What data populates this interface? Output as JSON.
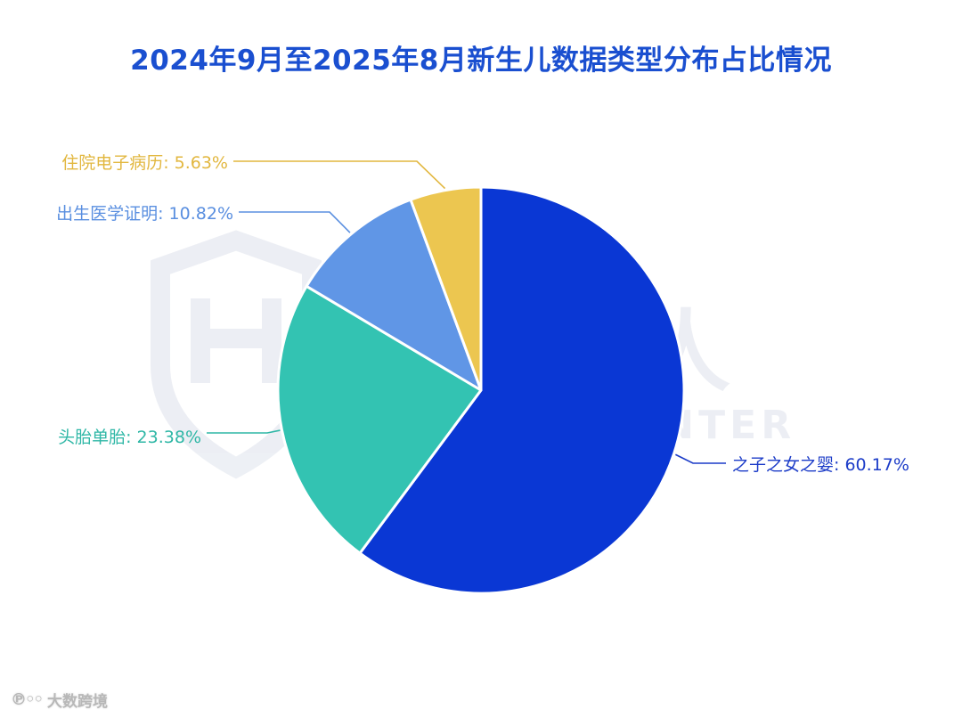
{
  "title": "2024年9月至2025年8月新生儿数据类型分布占比情况",
  "watermark": {
    "cn": "威胁猎人",
    "en": "THREAT HUNTER"
  },
  "footer": {
    "brand": "大数跨境"
  },
  "chart_data": {
    "type": "pie",
    "title": "2024年9月至2025年8月新生儿数据类型分布占比情况",
    "slices": [
      {
        "label": "之子之女之婴",
        "value": 60.17,
        "display": "之子之女之婴: 60.17%",
        "color": "#0a37d4"
      },
      {
        "label": "头胎单胎",
        "value": 23.38,
        "display": "头胎单胎: 23.38%",
        "color": "#33c3b2"
      },
      {
        "label": "出生医学证明",
        "value": 10.82,
        "display": "出生医学证明: 10.82%",
        "color": "#6096e6"
      },
      {
        "label": "住院电子病历",
        "value": 5.63,
        "display": "住院电子病历: 5.63%",
        "color": "#ecc650"
      }
    ],
    "label_colors": [
      "#1c3cc8",
      "#2fb7a6",
      "#5a8fe0",
      "#e2b73f"
    ]
  }
}
